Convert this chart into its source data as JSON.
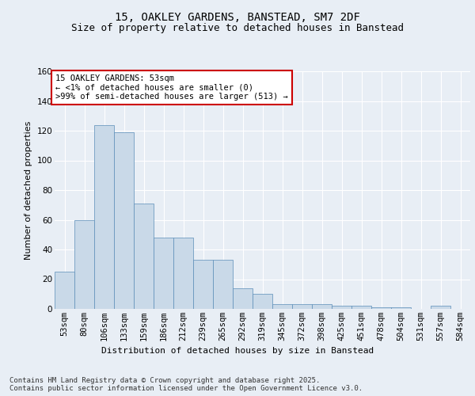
{
  "title": "15, OAKLEY GARDENS, BANSTEAD, SM7 2DF",
  "subtitle": "Size of property relative to detached houses in Banstead",
  "xlabel": "Distribution of detached houses by size in Banstead",
  "ylabel": "Number of detached properties",
  "categories": [
    "53sqm",
    "80sqm",
    "106sqm",
    "133sqm",
    "159sqm",
    "186sqm",
    "212sqm",
    "239sqm",
    "265sqm",
    "292sqm",
    "319sqm",
    "345sqm",
    "372sqm",
    "398sqm",
    "425sqm",
    "451sqm",
    "478sqm",
    "504sqm",
    "531sqm",
    "557sqm",
    "584sqm"
  ],
  "values": [
    25,
    60,
    124,
    119,
    71,
    48,
    48,
    33,
    33,
    14,
    10,
    3,
    3,
    3,
    2,
    2,
    1,
    1,
    0,
    2,
    0
  ],
  "bar_color": "#c9d9e8",
  "bar_edge_color": "#5b8db8",
  "annotation_text": "15 OAKLEY GARDENS: 53sqm\n← <1% of detached houses are smaller (0)\n>99% of semi-detached houses are larger (513) →",
  "annotation_box_color": "#ffffff",
  "annotation_box_edge": "#cc0000",
  "ylim": [
    0,
    160
  ],
  "yticks": [
    0,
    20,
    40,
    60,
    80,
    100,
    120,
    140,
    160
  ],
  "footer": "Contains HM Land Registry data © Crown copyright and database right 2025.\nContains public sector information licensed under the Open Government Licence v3.0.",
  "bg_color": "#e8eef5",
  "plot_bg_color": "#e8eef5",
  "grid_color": "#ffffff",
  "title_fontsize": 10,
  "subtitle_fontsize": 9,
  "axis_label_fontsize": 8,
  "tick_fontsize": 7.5,
  "footer_fontsize": 6.5,
  "annotation_fontsize": 7.5
}
